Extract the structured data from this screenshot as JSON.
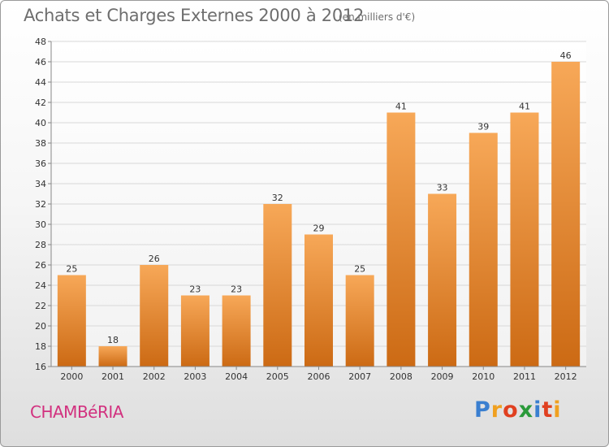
{
  "header": {
    "title": "Achats et Charges Externes 2000 à 2012",
    "unit_note": "(en milliers d'€)"
  },
  "footer": {
    "city": "CHAMBéRIA",
    "brand_letters": [
      {
        "ch": "P",
        "color": "#3a7fd0"
      },
      {
        "ch": "r",
        "color": "#f0a020"
      },
      {
        "ch": "o",
        "color": "#e04020"
      },
      {
        "ch": "x",
        "color": "#2a9a3a"
      },
      {
        "ch": "i",
        "color": "#3a7fd0"
      },
      {
        "ch": "t",
        "color": "#e04020"
      },
      {
        "ch": "i",
        "color": "#f0a020"
      }
    ]
  },
  "colors": {
    "bar_top": "#f7a858",
    "bar_bottom": "#cc6a14",
    "grid": "#d8d8d8",
    "axis": "#888888",
    "city": "#d2317f"
  },
  "chart_data": {
    "type": "bar",
    "categories": [
      "2000",
      "2001",
      "2002",
      "2003",
      "2004",
      "2005",
      "2006",
      "2007",
      "2008",
      "2009",
      "2010",
      "2011",
      "2012"
    ],
    "values": [
      25,
      18,
      26,
      23,
      23,
      32,
      29,
      25,
      41,
      33,
      39,
      41,
      46
    ],
    "ylim": [
      16,
      48
    ],
    "yticks": [
      16,
      18,
      20,
      22,
      24,
      26,
      28,
      30,
      32,
      34,
      36,
      38,
      40,
      42,
      44,
      46,
      48
    ],
    "grid": true,
    "data_labels": true
  }
}
